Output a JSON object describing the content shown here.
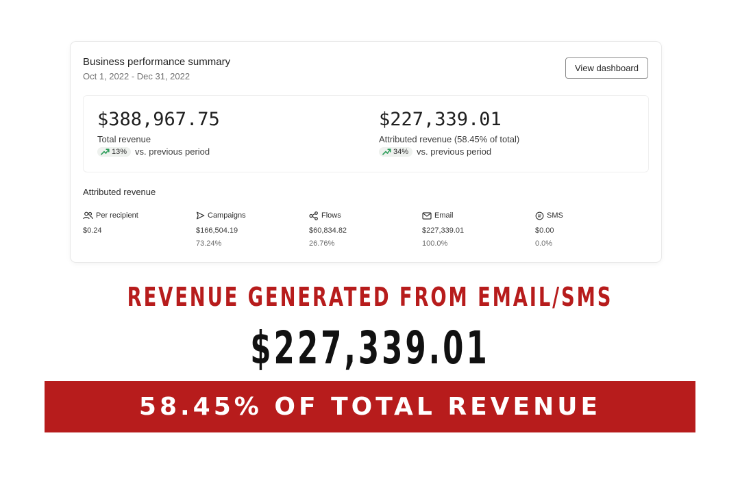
{
  "card": {
    "title": "Business performance summary",
    "date_range": "Oct 1, 2022 - Dec 31, 2022",
    "button_label": "View dashboard"
  },
  "stats": {
    "total": {
      "value": "$388,967.75",
      "label": "Total revenue",
      "change_pct": "13%",
      "change_text": "vs. previous period",
      "trend_icon": "trend-up-icon"
    },
    "attributed": {
      "value": "$227,339.01",
      "label": "Attributed revenue (58.45% of total)",
      "change_pct": "34%",
      "change_text": "vs. previous period",
      "trend_icon": "trend-up-icon"
    }
  },
  "attributed_section": {
    "title": "Attributed revenue",
    "metrics": [
      {
        "icon": "users-icon",
        "label": "Per recipient",
        "value": "$0.24",
        "percent": ""
      },
      {
        "icon": "send-icon",
        "label": "Campaigns",
        "value": "$166,504.19",
        "percent": "73.24%"
      },
      {
        "icon": "flows-icon",
        "label": "Flows",
        "value": "$60,834.82",
        "percent": "26.76%"
      },
      {
        "icon": "mail-icon",
        "label": "Email",
        "value": "$227,339.01",
        "percent": "100.0%"
      },
      {
        "icon": "sms-icon",
        "label": "SMS",
        "value": "$0.00",
        "percent": "0.0%"
      }
    ]
  },
  "headline": "REVENUE GENERATED FROM EMAIL/SMS",
  "big_value": "$227,339.01",
  "banner_text": "58.45% OF TOTAL REVENUE",
  "colors": {
    "accent_red": "#b71c1c",
    "trend_green": "#2e9e5b"
  }
}
